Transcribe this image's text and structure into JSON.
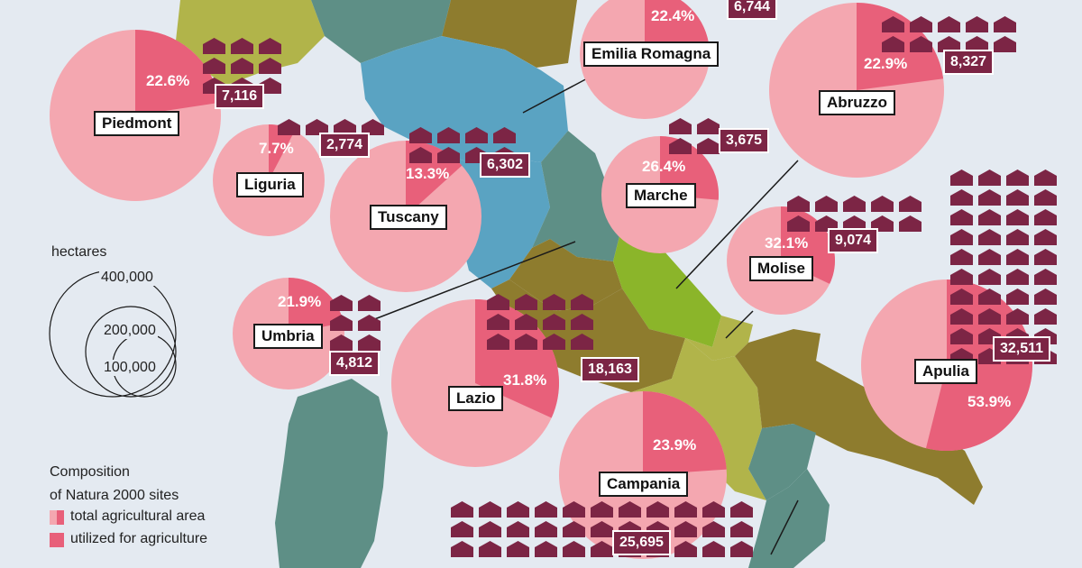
{
  "legend": {
    "size_title": "hectares",
    "size_labels": [
      "400,000",
      "200,000",
      "100,000"
    ],
    "composition_title_line1": "Composition",
    "composition_title_line2": "of Natura 2000 sites",
    "total_label": "total agricultural area",
    "utilized_label": "utilized for agriculture"
  },
  "colors": {
    "total": "#f4a7b0",
    "utilized": "#e8607a",
    "farm": "#7c2545",
    "sea": "#e4eaf1",
    "region_teal": "#5e8f86",
    "region_blue": "#5aa3c2",
    "region_olive": "#8e7c2e",
    "region_lime": "#b1b44a",
    "region_green": "#8bb52a"
  },
  "icon": "farm-house-icon",
  "regions": [
    {
      "id": "emilia-romagna",
      "name": "Emilia Romagna",
      "pct": "22.4%",
      "pct_value": 22.4,
      "count": "6,744"
    },
    {
      "id": "piedmont",
      "name": "Piedmont",
      "pct": "22.6%",
      "pct_value": 22.6,
      "count": "7,116"
    },
    {
      "id": "liguria",
      "name": "Liguria",
      "pct": "7.7%",
      "pct_value": 7.7,
      "count": "2,774"
    },
    {
      "id": "tuscany",
      "name": "Tuscany",
      "pct": "13.3%",
      "pct_value": 13.3,
      "count": "6,302"
    },
    {
      "id": "marche",
      "name": "Marche",
      "pct": "26.4%",
      "pct_value": 26.4,
      "count": "3,675"
    },
    {
      "id": "abruzzo",
      "name": "Abruzzo",
      "pct": "22.9%",
      "pct_value": 22.9,
      "count": "8,327"
    },
    {
      "id": "molise",
      "name": "Molise",
      "pct": "32.1%",
      "pct_value": 32.1,
      "count": "9,074"
    },
    {
      "id": "umbria",
      "name": "Umbria",
      "pct": "21.9%",
      "pct_value": 21.9,
      "count": "4,812"
    },
    {
      "id": "lazio",
      "name": "Lazio",
      "pct": "31.8%",
      "pct_value": 31.8,
      "count": "18,163"
    },
    {
      "id": "apulia",
      "name": "Apulia",
      "pct": "53.9%",
      "pct_value": 53.9,
      "count": "32,511"
    },
    {
      "id": "campania",
      "name": "Campania",
      "pct": "23.9%",
      "pct_value": 23.9,
      "count": "25,695"
    }
  ]
}
